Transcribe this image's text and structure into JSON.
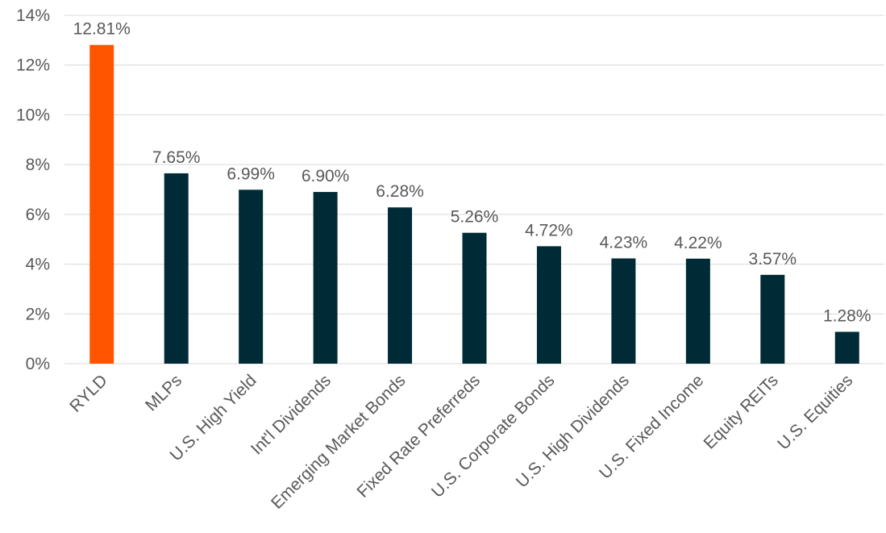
{
  "chart_data": {
    "type": "bar",
    "title": "",
    "xlabel": "",
    "ylabel": "",
    "ylim": [
      0,
      14
    ],
    "yticks": [
      0,
      2,
      4,
      6,
      8,
      10,
      12,
      14
    ],
    "ytick_labels": [
      "0%",
      "2%",
      "4%",
      "6%",
      "8%",
      "10%",
      "12%",
      "14%"
    ],
    "grid": true,
    "legend": "none",
    "categories": [
      "RYLD",
      "MLPs",
      "U.S. High Yield",
      "Int'l Dividends",
      "Emerging Market Bonds",
      "Fixed Rate Preferreds",
      "U.S. Corporate Bonds",
      "U.S. High Dividends",
      "U.S. Fixed Income",
      "Equity REITs",
      "U.S. Equities"
    ],
    "values": [
      12.81,
      7.65,
      6.99,
      6.9,
      6.28,
      5.26,
      4.72,
      4.23,
      4.22,
      3.57,
      1.28
    ],
    "data_labels": [
      "12.81%",
      "7.65%",
      "6.99%",
      "6.90%",
      "6.28%",
      "5.26%",
      "4.72%",
      "4.23%",
      "4.22%",
      "3.57%",
      "1.28%"
    ],
    "bar_colors": [
      "#ff5500",
      "#002b36",
      "#002b36",
      "#002b36",
      "#002b36",
      "#002b36",
      "#002b36",
      "#002b36",
      "#002b36",
      "#002b36",
      "#002b36"
    ]
  }
}
